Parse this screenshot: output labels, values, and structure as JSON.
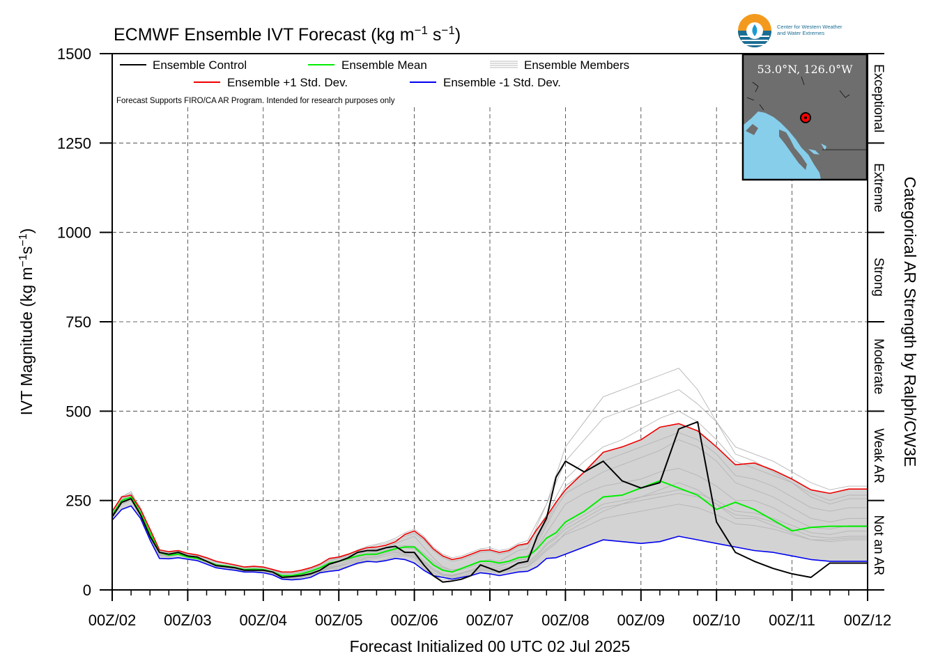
{
  "chart_data": {
    "type": "line",
    "title": "ECMWF Ensemble IVT Forecast (kg m",
    "title_units_sup1": "−1",
    "title_units_mid": " s",
    "title_units_sup2": "−1",
    "title_units_end": ")",
    "ylabel": "IVT Magnitude (kg m",
    "ylabel_sup1": "−1",
    "ylabel_mid": "s",
    "ylabel_sup2": "−1",
    "ylabel_end": ")",
    "xlabel": "Forecast Initialized 00 UTC 02 Jul 2025",
    "right_label": "Categorical AR Strength by Ralph/CW3E",
    "note": "Forecast Supports FIRO/CA AR Program. Intended for research purposes only",
    "location": "53.0°N, 126.0°W",
    "logo_text": [
      "Center for Western Weather",
      "and Water Extremes"
    ],
    "xlim": [
      0,
      10
    ],
    "ylim": [
      0,
      1500
    ],
    "x_ticks": [
      0,
      1,
      2,
      3,
      4,
      5,
      6,
      7,
      8,
      9,
      10
    ],
    "x_tick_labels": [
      "00Z/02",
      "00Z/03",
      "00Z/04",
      "00Z/05",
      "00Z/06",
      "00Z/07",
      "00Z/08",
      "00Z/09",
      "00Z/10",
      "00Z/11",
      "00Z/12"
    ],
    "y_ticks": [
      0,
      250,
      500,
      750,
      1000,
      1250,
      1500
    ],
    "y_tick_labels": [
      "0",
      "250",
      "500",
      "750",
      "1000",
      "1250",
      "1500"
    ],
    "grid": "dashed",
    "legend": [
      {
        "name": "Ensemble Control",
        "color": "#000000"
      },
      {
        "name": "Ensemble Mean",
        "color": "#00ee00"
      },
      {
        "name": "Ensemble Members",
        "color": "#bbbbbb"
      },
      {
        "name": "Ensemble +1 Std. Dev.",
        "color": "#ee0000"
      },
      {
        "name": "Ensemble -1 Std. Dev.",
        "color": "#0000ee"
      }
    ],
    "categories": [
      {
        "label": "Not an AR",
        "from": 0,
        "to": 250
      },
      {
        "label": "Weak AR",
        "from": 250,
        "to": 500
      },
      {
        "label": "Moderate",
        "from": 500,
        "to": 750
      },
      {
        "label": "Strong",
        "from": 750,
        "to": 1000
      },
      {
        "label": "Extreme",
        "from": 1000,
        "to": 1250
      },
      {
        "label": "Exceptional",
        "from": 1250,
        "to": 1500
      }
    ],
    "x": [
      0,
      0.125,
      0.25,
      0.375,
      0.5,
      0.625,
      0.75,
      0.875,
      1,
      1.125,
      1.25,
      1.375,
      1.5,
      1.625,
      1.75,
      1.875,
      2,
      2.125,
      2.25,
      2.375,
      2.5,
      2.625,
      2.75,
      2.875,
      3,
      3.125,
      3.25,
      3.375,
      3.5,
      3.625,
      3.75,
      3.875,
      4,
      4.125,
      4.25,
      4.375,
      4.5,
      4.625,
      4.75,
      4.875,
      5,
      5.125,
      5.25,
      5.375,
      5.5,
      5.625,
      5.75,
      5.875,
      6,
      6.25,
      6.5,
      6.75,
      7,
      7.25,
      7.5,
      7.75,
      8,
      8.25,
      8.5,
      8.75,
      9,
      9.25,
      9.5,
      9.75,
      10
    ],
    "series": [
      {
        "name": "Ensemble Control",
        "color": "#000000",
        "width": 2,
        "values": [
          205,
          245,
          255,
          210,
          150,
          105,
          100,
          105,
          95,
          92,
          80,
          68,
          65,
          62,
          55,
          55,
          55,
          50,
          35,
          37,
          40,
          45,
          55,
          72,
          80,
          90,
          105,
          110,
          110,
          118,
          122,
          105,
          105,
          70,
          40,
          22,
          25,
          30,
          40,
          70,
          60,
          50,
          60,
          75,
          80,
          150,
          200,
          315,
          360,
          330,
          360,
          305,
          285,
          300,
          450,
          470,
          190,
          105,
          80,
          60,
          45,
          35,
          75,
          75,
          75
        ]
      },
      {
        "name": "Ensemble Mean",
        "color": "#00ee00",
        "width": 2,
        "values": [
          210,
          250,
          260,
          215,
          160,
          105,
          97,
          100,
          92,
          88,
          80,
          70,
          67,
          63,
          57,
          58,
          57,
          50,
          40,
          40,
          45,
          52,
          62,
          75,
          80,
          88,
          95,
          100,
          100,
          108,
          115,
          120,
          120,
          95,
          70,
          55,
          50,
          60,
          70,
          80,
          80,
          75,
          80,
          90,
          93,
          115,
          145,
          160,
          190,
          220,
          260,
          265,
          285,
          305,
          285,
          265,
          225,
          245,
          225,
          195,
          165,
          175,
          178,
          178,
          178
        ]
      },
      {
        "name": "Ensemble +1 Std. Dev.",
        "color": "#ee0000",
        "width": 1.6,
        "values": [
          220,
          260,
          265,
          225,
          170,
          112,
          107,
          110,
          102,
          98,
          90,
          80,
          75,
          70,
          64,
          66,
          64,
          57,
          50,
          50,
          55,
          62,
          72,
          88,
          92,
          100,
          110,
          118,
          120,
          125,
          135,
          155,
          165,
          145,
          115,
          95,
          85,
          90,
          100,
          110,
          112,
          105,
          110,
          125,
          130,
          170,
          205,
          245,
          280,
          330,
          385,
          400,
          420,
          455,
          465,
          445,
          400,
          350,
          355,
          335,
          310,
          280,
          270,
          282,
          282
        ]
      },
      {
        "name": "Ensemble -1 Std. Dev.",
        "color": "#0000ee",
        "width": 1.6,
        "values": [
          195,
          225,
          235,
          200,
          140,
          88,
          87,
          90,
          86,
          82,
          72,
          62,
          58,
          55,
          50,
          50,
          48,
          42,
          30,
          28,
          30,
          35,
          48,
          52,
          55,
          65,
          75,
          80,
          78,
          82,
          88,
          85,
          75,
          55,
          40,
          35,
          30,
          35,
          40,
          48,
          45,
          40,
          45,
          50,
          52,
          65,
          88,
          90,
          100,
          120,
          140,
          135,
          130,
          135,
          150,
          140,
          130,
          120,
          110,
          105,
          95,
          85,
          80,
          80,
          80
        ]
      }
    ],
    "members": [
      [
        205,
        250,
        270,
        225,
        160,
        100,
        95,
        100,
        95,
        90,
        80,
        70,
        66,
        62,
        56,
        56,
        55,
        48,
        38,
        38,
        42,
        48,
        60,
        70,
        78,
        85,
        98,
        110,
        115,
        118,
        130,
        140,
        150,
        120,
        90,
        65,
        55,
        60,
        70,
        80,
        85,
        80,
        95,
        110,
        115,
        180,
        240,
        320,
        400,
        470,
        540,
        560,
        580,
        600,
        620,
        560,
        470,
        380,
        360,
        330,
        300,
        260,
        240,
        255,
        255
      ],
      [
        210,
        255,
        265,
        215,
        150,
        98,
        92,
        98,
        90,
        86,
        78,
        66,
        64,
        60,
        54,
        54,
        54,
        46,
        36,
        35,
        38,
        42,
        52,
        60,
        65,
        72,
        80,
        90,
        92,
        100,
        105,
        100,
        95,
        75,
        55,
        40,
        38,
        45,
        55,
        65,
        70,
        65,
        75,
        85,
        88,
        130,
        180,
        230,
        270,
        300,
        330,
        350,
        370,
        390,
        420,
        400,
        360,
        300,
        280,
        260,
        230,
        200,
        190,
        200,
        200
      ],
      [
        200,
        240,
        255,
        205,
        145,
        95,
        95,
        102,
        92,
        88,
        76,
        65,
        62,
        58,
        52,
        52,
        52,
        44,
        30,
        30,
        34,
        40,
        50,
        58,
        60,
        66,
        72,
        78,
        80,
        86,
        95,
        95,
        90,
        60,
        42,
        28,
        30,
        36,
        44,
        55,
        52,
        48,
        52,
        60,
        65,
        85,
        110,
        130,
        160,
        190,
        220,
        240,
        260,
        280,
        300,
        280,
        240,
        200,
        200,
        180,
        160,
        140,
        140,
        145,
        145
      ],
      [
        215,
        260,
        275,
        225,
        165,
        108,
        104,
        108,
        100,
        96,
        88,
        78,
        74,
        68,
        62,
        62,
        62,
        55,
        45,
        45,
        50,
        56,
        68,
        80,
        88,
        95,
        108,
        118,
        125,
        130,
        140,
        150,
        158,
        140,
        110,
        90,
        80,
        85,
        95,
        105,
        108,
        100,
        105,
        120,
        128,
        170,
        210,
        260,
        310,
        360,
        400,
        420,
        450,
        480,
        500,
        470,
        420,
        360,
        340,
        320,
        300,
        270,
        250,
        265,
        265
      ],
      [
        205,
        248,
        262,
        212,
        155,
        102,
        98,
        104,
        94,
        90,
        82,
        72,
        66,
        62,
        56,
        57,
        56,
        50,
        38,
        40,
        44,
        50,
        60,
        72,
        78,
        84,
        92,
        100,
        104,
        110,
        118,
        118,
        115,
        95,
        75,
        58,
        52,
        56,
        64,
        72,
        74,
        70,
        74,
        82,
        86,
        120,
        160,
        200,
        240,
        270,
        290,
        300,
        310,
        330,
        340,
        320,
        290,
        250,
        250,
        230,
        200,
        175,
        170,
        180,
        180
      ],
      [
        210,
        245,
        258,
        210,
        152,
        100,
        96,
        100,
        93,
        89,
        80,
        69,
        65,
        61,
        55,
        55,
        54,
        47,
        36,
        36,
        40,
        46,
        56,
        66,
        72,
        80,
        88,
        96,
        98,
        104,
        110,
        108,
        104,
        82,
        60,
        45,
        42,
        48,
        56,
        66,
        64,
        60,
        64,
        72,
        76,
        100,
        130,
        150,
        180,
        210,
        240,
        250,
        260,
        270,
        280,
        270,
        250,
        220,
        215,
        200,
        180,
        160,
        155,
        165,
        165
      ],
      [
        200,
        240,
        250,
        205,
        148,
        96,
        94,
        99,
        91,
        87,
        78,
        67,
        63,
        59,
        53,
        53,
        52,
        45,
        32,
        32,
        36,
        42,
        52,
        62,
        66,
        72,
        80,
        86,
        88,
        94,
        100,
        98,
        94,
        70,
        48,
        34,
        34,
        40,
        48,
        58,
        56,
        52,
        56,
        62,
        66,
        90,
        115,
        135,
        155,
        175,
        200,
        210,
        220,
        230,
        240,
        230,
        210,
        185,
        180,
        170,
        155,
        140,
        135,
        140,
        140
      ],
      [
        220,
        262,
        270,
        230,
        168,
        110,
        106,
        110,
        102,
        97,
        89,
        79,
        75,
        70,
        63,
        63,
        63,
        56,
        46,
        46,
        51,
        58,
        70,
        84,
        90,
        98,
        112,
        122,
        128,
        134,
        145,
        160,
        170,
        150,
        120,
        100,
        90,
        95,
        105,
        115,
        118,
        110,
        115,
        130,
        138,
        190,
        240,
        300,
        360,
        420,
        480,
        500,
        520,
        540,
        560,
        520,
        470,
        400,
        380,
        360,
        330,
        300,
        280,
        290,
        290
      ],
      [
        205,
        252,
        266,
        218,
        158,
        104,
        100,
        103,
        96,
        91,
        82,
        71,
        67,
        63,
        57,
        58,
        57,
        50,
        40,
        41,
        45,
        52,
        62,
        74,
        80,
        87,
        96,
        104,
        108,
        114,
        122,
        124,
        122,
        102,
        80,
        62,
        56,
        60,
        68,
        78,
        80,
        76,
        80,
        90,
        95,
        140,
        190,
        240,
        290,
        330,
        360,
        380,
        400,
        420,
        440,
        420,
        380,
        320,
        310,
        290,
        260,
        230,
        220,
        230,
        230
      ],
      [
        210,
        244,
        256,
        208,
        150,
        99,
        95,
        101,
        92,
        88,
        79,
        68,
        64,
        60,
        54,
        54,
        53,
        46,
        34,
        34,
        38,
        44,
        54,
        64,
        68,
        76,
        84,
        92,
        94,
        100,
        106,
        104,
        100,
        78,
        56,
        42,
        40,
        46,
        52,
        62,
        60,
        56,
        60,
        68,
        72,
        95,
        125,
        145,
        170,
        200,
        230,
        240,
        250,
        260,
        270,
        260,
        240,
        210,
        205,
        190,
        170,
        150,
        145,
        150,
        150
      ]
    ]
  }
}
